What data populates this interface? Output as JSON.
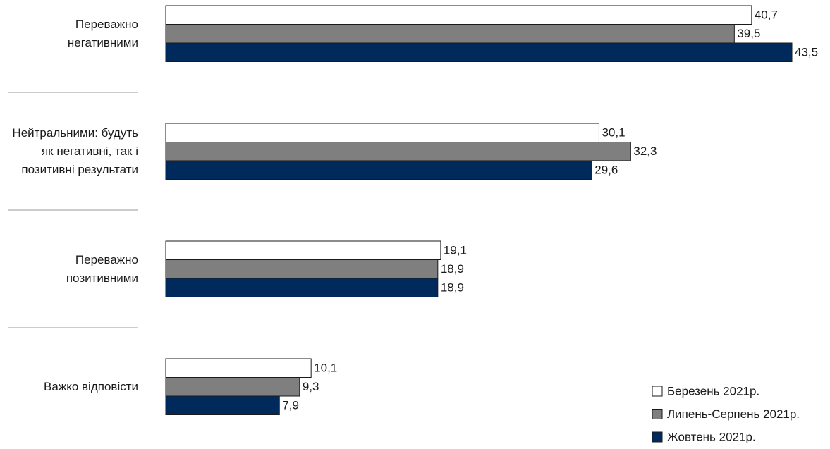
{
  "chart_data": {
    "type": "bar",
    "orientation": "horizontal",
    "categories": [
      "Переважно негативними",
      "Нейтральними: будуть як негативні, так і позитивні результати",
      "Переважно позитивними",
      "Важко відповісти"
    ],
    "series": [
      {
        "name": "Березень 2021р.",
        "color": "#ffffff",
        "values": [
          40.7,
          30.1,
          19.1,
          10.1
        ],
        "value_labels": [
          "40,7",
          "30,1",
          "19,1",
          "10,1"
        ]
      },
      {
        "name": "Липень-Серпень 2021р.",
        "color": "#7f7f80",
        "values": [
          39.5,
          32.3,
          18.9,
          9.3
        ],
        "value_labels": [
          "39,5",
          "32,3",
          "18,9",
          "9,3"
        ]
      },
      {
        "name": "Жовтень 2021р.",
        "color": "#002a5c",
        "values": [
          43.5,
          29.6,
          18.9,
          7.9
        ],
        "value_labels": [
          "43,5",
          "29,6",
          "18,9",
          "7,9"
        ]
      }
    ],
    "legend": "bottom-right"
  }
}
